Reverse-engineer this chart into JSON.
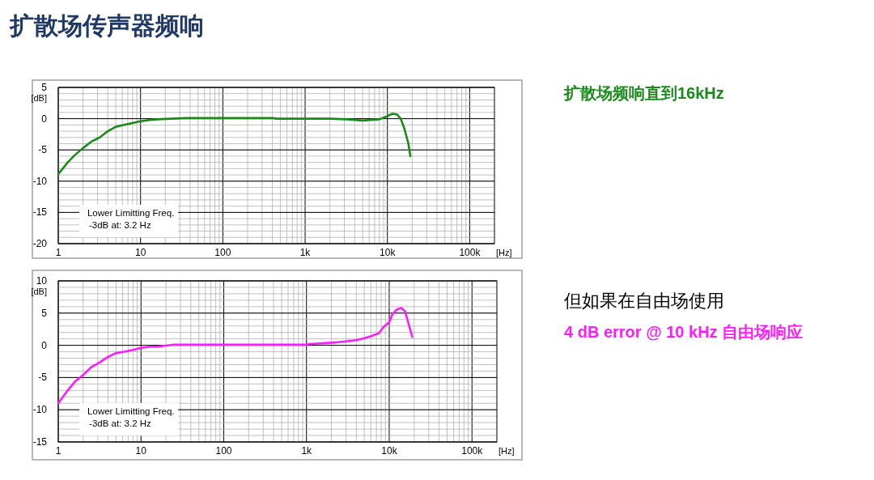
{
  "chart_data": [
    {
      "type": "line",
      "title": "扩散场传声器频响",
      "xlabel": "[Hz]",
      "ylabel": "[dB]",
      "xlim": [
        1,
        200000
      ],
      "ylim": [
        -20,
        5
      ],
      "log": "x",
      "grid": true,
      "marker": "none",
      "line_style": "solid",
      "xticks": [
        1,
        10,
        100,
        {
          "value": 1000,
          "label": "1k"
        },
        {
          "value": 10000,
          "label": "10k"
        },
        {
          "value": 100000,
          "label": "100k"
        }
      ],
      "yticks": [
        -20,
        -15,
        -10,
        -5,
        0,
        5
      ],
      "annotations": [
        "Lower Limitting Freq.",
        "-3dB at: 3.2 Hz",
        "扩散场频响直到16kHz"
      ],
      "series": [
        {
          "color": "#1a8a1a",
          "x": [
            1,
            1.3,
            1.6,
            2,
            2.5,
            3.2,
            4,
            5,
            6.3,
            8,
            10,
            13,
            16,
            35,
            100,
            400,
            450,
            1000,
            2000,
            3200,
            5000,
            6300,
            8000,
            10000,
            11500,
            13000,
            14500,
            16000,
            18000,
            19000
          ],
          "values": [
            -8.9,
            -7,
            -5.8,
            -4.7,
            -3.7,
            -3,
            -2,
            -1.3,
            -1,
            -0.7,
            -0.4,
            -0.2,
            -0.1,
            0.1,
            0.1,
            0.1,
            0,
            0,
            0,
            -0.1,
            -0.3,
            -0.2,
            -0.1,
            0.4,
            0.8,
            0.7,
            0,
            -1.5,
            -4,
            -6
          ]
        }
      ]
    },
    {
      "type": "line",
      "xlabel": "[Hz]",
      "ylabel": "[dB]",
      "xlim": [
        1,
        200000
      ],
      "ylim": [
        -15,
        10
      ],
      "log": "x",
      "grid": true,
      "marker": "none",
      "line_style": "solid",
      "xticks": [
        1,
        10,
        100,
        {
          "value": 1000,
          "label": "1k"
        },
        {
          "value": 10000,
          "label": "10k"
        },
        {
          "value": 100000,
          "label": "100k"
        }
      ],
      "yticks": [
        -15,
        -10,
        -5,
        0,
        5,
        10
      ],
      "annotations": [
        "Lower Limitting Freq.",
        "-3dB at: 3.2 Hz",
        "但如果在自由场使用",
        "4 dB error @ 10 kHz 自由场响应"
      ],
      "series": [
        {
          "color": "#ff1aff",
          "x": [
            1,
            1.3,
            1.6,
            2,
            2.5,
            3.2,
            4,
            5,
            6.3,
            8,
            10,
            13,
            16,
            25,
            100,
            1000,
            1100,
            2000,
            3000,
            4000,
            5000,
            6300,
            7500,
            8500,
            10000,
            11000,
            12500,
            14000,
            15500,
            17000,
            19000
          ],
          "values": [
            -9,
            -7,
            -5.6,
            -4.6,
            -3.4,
            -2.6,
            -1.8,
            -1.2,
            -1,
            -0.7,
            -0.4,
            -0.2,
            -0.2,
            0.1,
            0.1,
            0.1,
            0.2,
            0.4,
            0.6,
            0.8,
            1.1,
            1.5,
            1.9,
            2.8,
            3.6,
            4.9,
            5.6,
            5.8,
            5.3,
            3.5,
            1.3
          ]
        }
      ]
    }
  ]
}
